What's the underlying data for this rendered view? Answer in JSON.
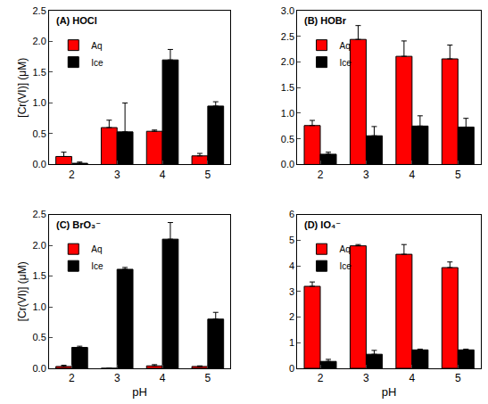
{
  "chart_data": [
    {
      "type": "bar",
      "title": "(A) HOCl",
      "y_label": "[Cr(VI)] (μM)",
      "categories": [
        "2",
        "3",
        "4",
        "5"
      ],
      "series": [
        {
          "name": "Aq",
          "color": "#ff0000",
          "values": [
            0.13,
            0.6,
            0.54,
            0.14
          ],
          "error": [
            0.07,
            0.12,
            0.02,
            0.04
          ]
        },
        {
          "name": "Ice",
          "color": "#000000",
          "values": [
            0.02,
            0.53,
            1.7,
            0.95
          ],
          "error": [
            0.02,
            0.47,
            0.17,
            0.07
          ]
        }
      ],
      "ylim": [
        0,
        2.5
      ],
      "yticks": [
        {
          "value": 0,
          "label": "0.0"
        },
        0.5,
        {
          "value": 1,
          "label": "1.0"
        },
        1.5,
        {
          "value": 2,
          "label": "2.0"
        },
        2.5
      ],
      "legend": "upper left"
    },
    {
      "type": "bar",
      "title": "(B) HOBr",
      "categories": [
        "2",
        "3",
        "4",
        "5"
      ],
      "series": [
        {
          "name": "Aq",
          "color": "#ff0000",
          "values": [
            0.76,
            2.44,
            2.11,
            2.06
          ],
          "error": [
            0.1,
            0.27,
            0.3,
            0.27
          ]
        },
        {
          "name": "Ice",
          "color": "#000000",
          "values": [
            0.2,
            0.56,
            0.75,
            0.73
          ],
          "error": [
            0.04,
            0.18,
            0.2,
            0.17
          ]
        }
      ],
      "ylim": [
        0,
        3
      ],
      "yticks": [
        {
          "value": 0,
          "label": "0.0"
        },
        0.5,
        {
          "value": 1,
          "label": "1.0"
        },
        1.5,
        {
          "value": 2,
          "label": "2.0"
        },
        2.5,
        {
          "value": 3,
          "label": "3.0"
        }
      ],
      "legend": "upper left"
    },
    {
      "type": "bar",
      "title": "(C) BrO₃⁻",
      "x_label": "pH",
      "y_label": "[Cr(VI)] (μM)",
      "categories": [
        "2",
        "3",
        "4",
        "5"
      ],
      "series": [
        {
          "name": "Aq",
          "color": "#ff0000",
          "values": [
            0.03,
            0,
            0.04,
            0.03
          ],
          "error": [
            0.02,
            0,
            0.02,
            0.01
          ]
        },
        {
          "name": "Ice",
          "color": "#000000",
          "values": [
            0.34,
            1.61,
            2.1,
            0.8
          ],
          "error": [
            0.02,
            0.03,
            0.27,
            0.11
          ]
        }
      ],
      "ylim": [
        0,
        2.5
      ],
      "yticks": [
        {
          "value": 0,
          "label": "0.0"
        },
        0.5,
        {
          "value": 1,
          "label": "1.0"
        },
        1.5,
        {
          "value": 2,
          "label": "2.0"
        },
        2.5
      ],
      "legend": "upper left"
    },
    {
      "type": "bar",
      "title": "(D) IO₄⁻",
      "x_label": "pH",
      "categories": [
        "2",
        "3",
        "4",
        "5"
      ],
      "series": [
        {
          "name": "Aq",
          "color": "#ff0000",
          "values": [
            3.2,
            4.78,
            4.45,
            3.93
          ],
          "error": [
            0.17,
            0.05,
            0.38,
            0.22
          ]
        },
        {
          "name": "Ice",
          "color": "#000000",
          "values": [
            0.27,
            0.55,
            0.72,
            0.72
          ],
          "error": [
            0.08,
            0.15,
            0.03,
            0.03
          ]
        }
      ],
      "ylim": [
        0,
        6
      ],
      "yticks": [
        0,
        1,
        2,
        3,
        4,
        5,
        6
      ],
      "legend": "upper left"
    }
  ]
}
